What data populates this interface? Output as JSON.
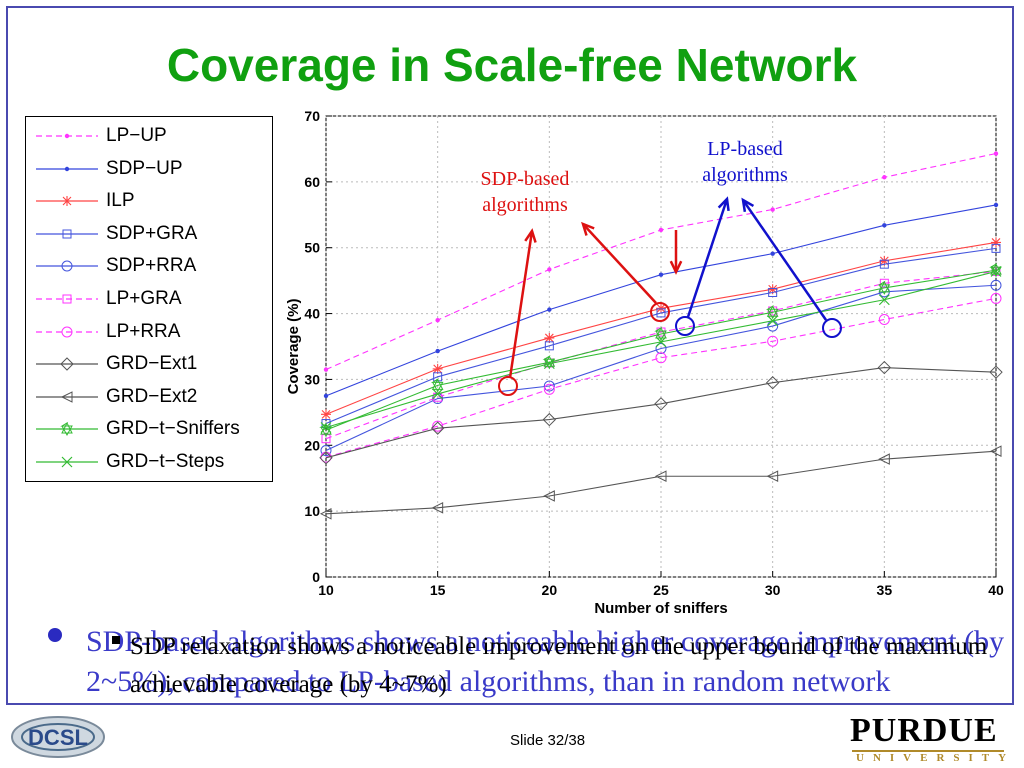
{
  "slide": {
    "title": "Coverage in Scale-free Network",
    "footer": "Slide 32/38",
    "logo_left_text": "DCSL",
    "logo_right_text": "PURDUE",
    "logo_right_sub": "UNIVERSITY"
  },
  "annotations": {
    "sdp_based": [
      "SDP-based",
      "algorithms"
    ],
    "lp_based": [
      "LP-based",
      "algorithms"
    ]
  },
  "bullets": {
    "main": "SDP-based algorithms shows a noticeable higher coverage improvement (by 2~5%), compared to LP-based algorithms, than in random network",
    "sub": "SDP relaxation shows a noticeable improvement on the upper bound of the maximum achievable coverage (by 4~7%)"
  },
  "colors": {
    "title": "#10a010",
    "frame": "#4a4ab0",
    "sdp_annotation": "#dd1111",
    "lp_annotation": "#1111cc"
  },
  "chart_data": {
    "type": "line",
    "xlabel": "Number of sniffers",
    "ylabel": "Coverage (%)",
    "x": [
      10,
      15,
      20,
      25,
      30,
      35,
      40
    ],
    "xlim": [
      10,
      40
    ],
    "ylim": [
      0,
      70
    ],
    "xticks": [
      10,
      15,
      20,
      25,
      30,
      35,
      40
    ],
    "yticks": [
      0,
      10,
      20,
      30,
      40,
      50,
      60,
      70
    ],
    "grid": true,
    "legend_position": "outside-left",
    "series": [
      {
        "name": "LP−UP",
        "values": [
          31.5,
          39,
          46.7,
          52.7,
          55.8,
          60.7,
          64.3
        ],
        "color": "#ff33ff",
        "dash": "6,4",
        "marker": "dot"
      },
      {
        "name": "SDP−UP",
        "values": [
          27.5,
          34.3,
          40.6,
          45.9,
          49.1,
          53.4,
          56.5
        ],
        "color": "#3344dd",
        "dash": "",
        "marker": "dot"
      },
      {
        "name": "ILP",
        "values": [
          24.7,
          31.6,
          36.3,
          40.8,
          43.7,
          48.0,
          50.8
        ],
        "color": "#ff4444",
        "dash": "",
        "marker": "star"
      },
      {
        "name": "SDP+GRA",
        "values": [
          23.3,
          30.4,
          35.1,
          40.1,
          43.2,
          47.5,
          49.9
        ],
        "color": "#4455dd",
        "dash": "",
        "marker": "square"
      },
      {
        "name": "SDP+RRA",
        "values": [
          19.2,
          27.1,
          29.0,
          34.7,
          38.1,
          43.3,
          44.3
        ],
        "color": "#4455dd",
        "dash": "",
        "marker": "circle"
      },
      {
        "name": "LP+GRA",
        "values": [
          21.0,
          27.3,
          32.5,
          37.2,
          40.4,
          44.6,
          46.4
        ],
        "color": "#ff33ff",
        "dash": "6,4",
        "marker": "square"
      },
      {
        "name": "LP+RRA",
        "values": [
          18.2,
          22.9,
          28.5,
          33.3,
          35.8,
          39.1,
          42.3
        ],
        "color": "#ff33ff",
        "dash": "6,4",
        "marker": "circle"
      },
      {
        "name": "GRD−Ext1",
        "values": [
          18.1,
          22.6,
          23.9,
          26.3,
          29.5,
          31.8,
          31.1
        ],
        "color": "#555555",
        "dash": "",
        "marker": "diamond"
      },
      {
        "name": "GRD−Ext2",
        "values": [
          9.6,
          10.5,
          12.3,
          15.3,
          15.3,
          17.9,
          19.1
        ],
        "color": "#555555",
        "dash": "",
        "marker": "triangle"
      },
      {
        "name": "GRD−t−Sniffers",
        "values": [
          22.3,
          29.1,
          32.6,
          36.9,
          40.2,
          43.9,
          46.6
        ],
        "color": "#33bb33",
        "dash": "",
        "marker": "hexstar"
      },
      {
        "name": "GRD−t−Steps",
        "values": [
          22.7,
          27.8,
          32.4,
          35.7,
          38.9,
          42.1,
          46.4
        ],
        "color": "#33bb33",
        "dash": "",
        "marker": "x"
      }
    ]
  }
}
